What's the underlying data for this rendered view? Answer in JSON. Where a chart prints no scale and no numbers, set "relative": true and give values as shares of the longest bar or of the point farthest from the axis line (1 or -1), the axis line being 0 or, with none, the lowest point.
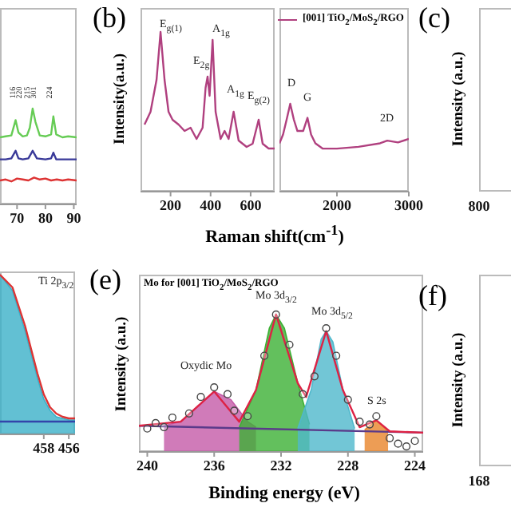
{
  "chart_data": [
    {
      "type": "line",
      "relative": true,
      "xlim": [
        64,
        91
      ],
      "xticks": [
        70,
        80,
        90
      ],
      "series": [
        {
          "color": "#66cc55",
          "x": [
            64,
            66,
            68,
            69.5,
            70.5,
            72,
            73.5,
            74.5,
            75.5,
            76.5,
            78,
            80,
            82,
            82.8,
            83.8,
            86,
            88,
            91
          ],
          "values": [
            0.7,
            0.71,
            0.72,
            0.88,
            0.75,
            0.71,
            0.72,
            0.8,
            1.0,
            0.86,
            0.72,
            0.71,
            0.73,
            0.92,
            0.73,
            0.7,
            0.71,
            0.7
          ]
        },
        {
          "color": "#3a3a99",
          "x": [
            64,
            66,
            68,
            69.5,
            70.5,
            72,
            74,
            75.5,
            77,
            80,
            82,
            82.8,
            83.8,
            86,
            88,
            91
          ],
          "values": [
            0.47,
            0.47,
            0.48,
            0.56,
            0.48,
            0.47,
            0.48,
            0.56,
            0.48,
            0.47,
            0.48,
            0.54,
            0.47,
            0.47,
            0.47,
            0.47
          ]
        },
        {
          "color": "#dd3333",
          "x": [
            64,
            66,
            68,
            70,
            72,
            74,
            76,
            78,
            80,
            82,
            84,
            86,
            88,
            91
          ],
          "values": [
            0.25,
            0.26,
            0.24,
            0.27,
            0.26,
            0.25,
            0.28,
            0.26,
            0.27,
            0.25,
            0.26,
            0.25,
            0.26,
            0.25
          ]
        }
      ],
      "annotations": [
        "116",
        "220",
        "215",
        "301",
        "224"
      ]
    },
    {
      "type": "line",
      "relative": true,
      "title": "(b)",
      "ylabel": "Intensity(a.u.)",
      "xlim": [
        50,
        720
      ],
      "xticks": [
        200,
        400,
        600
      ],
      "series": [
        {
          "color": "#b0407f",
          "x": [
            70,
            100,
            130,
            150,
            170,
            190,
            210,
            240,
            270,
            300,
            330,
            360,
            375,
            385,
            395,
            410,
            425,
            450,
            470,
            490,
            515,
            540,
            580,
            610,
            640,
            660,
            690,
            720
          ],
          "values": [
            0.42,
            0.5,
            0.7,
            1.0,
            0.7,
            0.5,
            0.45,
            0.42,
            0.38,
            0.4,
            0.33,
            0.4,
            0.65,
            0.72,
            0.6,
            0.95,
            0.5,
            0.33,
            0.38,
            0.33,
            0.5,
            0.32,
            0.28,
            0.3,
            0.45,
            0.3,
            0.27,
            0.27
          ]
        }
      ],
      "annotations": [
        "E$_{g(1)}$",
        "E$_{2g}$",
        "A$_{1g}$",
        "A$_{1g}$",
        "E$_{g(2)}$"
      ]
    },
    {
      "type": "line",
      "relative": true,
      "xlabel": "Raman shift(cm$^{-1}$)",
      "xlim": [
        1200,
        3000
      ],
      "xticks": [
        2000,
        3000
      ],
      "legend": "top right",
      "series": [
        {
          "name": "[001] TiO$_{2}$/MoS$_{2}$/RGO",
          "color": "#b0407f",
          "x": [
            1200,
            1250,
            1300,
            1350,
            1400,
            1450,
            1530,
            1590,
            1640,
            1700,
            1800,
            2000,
            2300,
            2600,
            2700,
            2850,
            3000
          ],
          "values": [
            0.55,
            0.65,
            0.82,
            1.0,
            0.82,
            0.69,
            0.69,
            0.84,
            0.65,
            0.55,
            0.49,
            0.49,
            0.51,
            0.55,
            0.58,
            0.56,
            0.6
          ]
        }
      ],
      "annotations": [
        "D",
        "G",
        "2D"
      ]
    },
    {
      "type": "other",
      "title": "(c)",
      "ylabel": "Intensity (a.u.)",
      "annotations": [
        "800"
      ]
    },
    {
      "type": "area",
      "relative": true,
      "xlim": [
        461.5,
        455.5
      ],
      "xticks": [
        458,
        456
      ],
      "series": [
        {
          "color": "#3bb0c8",
          "x": [
            461.5,
            460.5,
            459.5,
            459,
            458.5,
            458,
            457.5,
            457,
            456.5,
            456,
            455.5
          ],
          "values": [
            1.0,
            0.9,
            0.65,
            0.5,
            0.35,
            0.22,
            0.15,
            0.11,
            0.1,
            0.09,
            0.09
          ]
        },
        {
          "type": "line",
          "color": "#dd3333",
          "x": [
            461.5,
            460.5,
            459.5,
            459,
            458.5,
            458,
            457.5,
            457,
            456.5,
            456,
            455.5
          ],
          "values": [
            1.0,
            0.92,
            0.68,
            0.53,
            0.38,
            0.25,
            0.17,
            0.13,
            0.11,
            0.1,
            0.1
          ]
        },
        {
          "type": "line",
          "color": "#3344aa",
          "x": [
            461.5,
            455.5
          ],
          "values": [
            0.08,
            0.08
          ]
        }
      ],
      "annotations": [
        "Ti 2p$_{3/2}$"
      ]
    },
    {
      "type": "area",
      "relative": true,
      "title": "(e)",
      "subtitle": "Mo for [001] TiO$_{2}$/MoS$_{2}$/RGO",
      "ylabel": "Intensity (a.u.)",
      "xlabel": "Binding energy (eV)",
      "xlim": [
        240.5,
        223.5
      ],
      "xticks": [
        240,
        236,
        232,
        228,
        224
      ],
      "series": [
        {
          "color": "#c45aa8",
          "x": [
            239,
            238,
            237,
            236,
            235,
            234,
            233.5
          ],
          "values": [
            0.19,
            0.22,
            0.33,
            0.44,
            0.38,
            0.22,
            0.18
          ]
        },
        {
          "color": "#3cb034",
          "x": [
            234.5,
            233.5,
            232.7,
            232.3,
            231.8,
            231,
            230.3
          ],
          "values": [
            0.18,
            0.45,
            0.9,
            1.0,
            0.9,
            0.5,
            0.2
          ]
        },
        {
          "color": "#4fb8cc",
          "x": [
            231,
            230.2,
            229.6,
            229.3,
            228.9,
            228.3,
            227.6
          ],
          "values": [
            0.17,
            0.45,
            0.82,
            0.88,
            0.8,
            0.45,
            0.17
          ]
        },
        {
          "color": "#e8842a",
          "x": [
            227,
            226.3,
            225.6
          ],
          "values": [
            0.16,
            0.23,
            0.15
          ]
        },
        {
          "type": "line",
          "color": "#5a3a8a",
          "x": [
            240.5,
            223.5
          ],
          "values": [
            0.19,
            0.14
          ]
        },
        {
          "type": "line",
          "color": "#dd2244",
          "x": [
            240.5,
            238,
            236,
            234.5,
            233.5,
            232.3,
            231,
            230.5,
            229.3,
            228.3,
            227.3,
            226.3,
            225.5,
            223.5
          ],
          "values": [
            0.19,
            0.22,
            0.44,
            0.22,
            0.45,
            1.0,
            0.5,
            0.4,
            0.88,
            0.45,
            0.18,
            0.23,
            0.15,
            0.14
          ]
        },
        {
          "type": "scatter",
          "marker": "circle",
          "color": "#444444",
          "x": [
            240,
            239.5,
            239,
            238.5,
            237.5,
            236.8,
            236,
            235.2,
            234.8,
            234,
            233,
            232.3,
            231.5,
            230.7,
            230,
            229.3,
            228.7,
            228,
            227.3,
            226.7,
            226.3,
            225.5,
            225,
            224.5,
            224
          ],
          "values": [
            0.17,
            0.21,
            0.18,
            0.25,
            0.28,
            0.4,
            0.47,
            0.42,
            0.3,
            0.26,
            0.7,
            1.0,
            0.78,
            0.42,
            0.55,
            0.9,
            0.7,
            0.38,
            0.22,
            0.2,
            0.26,
            0.1,
            0.06,
            0.04,
            0.08
          ]
        }
      ],
      "annotations": [
        "Oxydic Mo",
        "Mo 3d$_{3/2}$",
        "Mo 3d$_{5/2}$",
        "S 2s"
      ]
    },
    {
      "type": "other",
      "title": "(f)",
      "ylabel": "Intensity (a.u.)",
      "annotations": [
        "168"
      ]
    }
  ]
}
